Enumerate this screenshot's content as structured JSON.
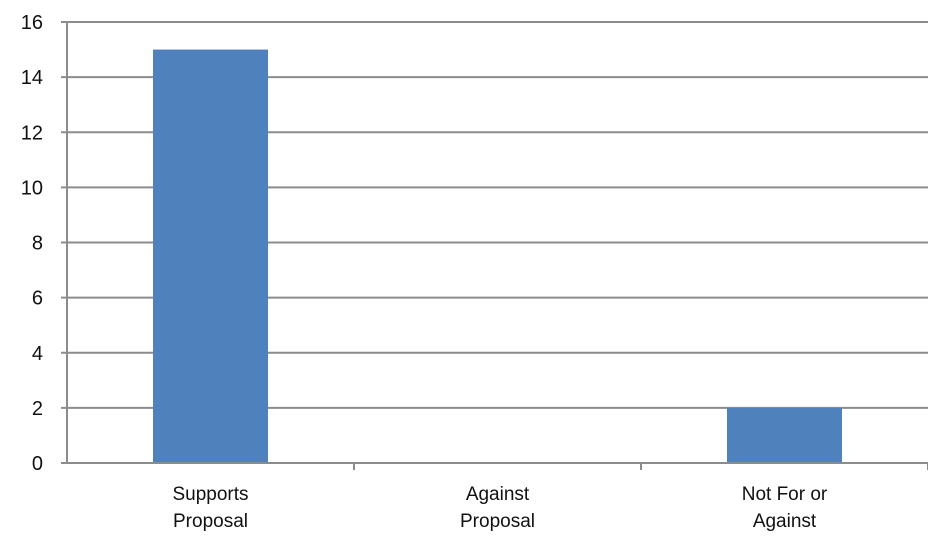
{
  "chart_data": {
    "type": "bar",
    "title": "",
    "xlabel": "",
    "ylabel": "",
    "categories": [
      [
        "Supports",
        "Proposal"
      ],
      [
        "Against",
        "Proposal"
      ],
      [
        "Not For or",
        "Against"
      ]
    ],
    "values": [
      15,
      0,
      2
    ],
    "ylim": [
      0,
      16
    ],
    "yticks": [
      0,
      2,
      4,
      6,
      8,
      10,
      12,
      14,
      16
    ],
    "grid": true,
    "legend": "none",
    "colors": {
      "bar": "#4f81bd",
      "grid": "#8c8c8c",
      "axis": "#8c8c8c"
    }
  }
}
